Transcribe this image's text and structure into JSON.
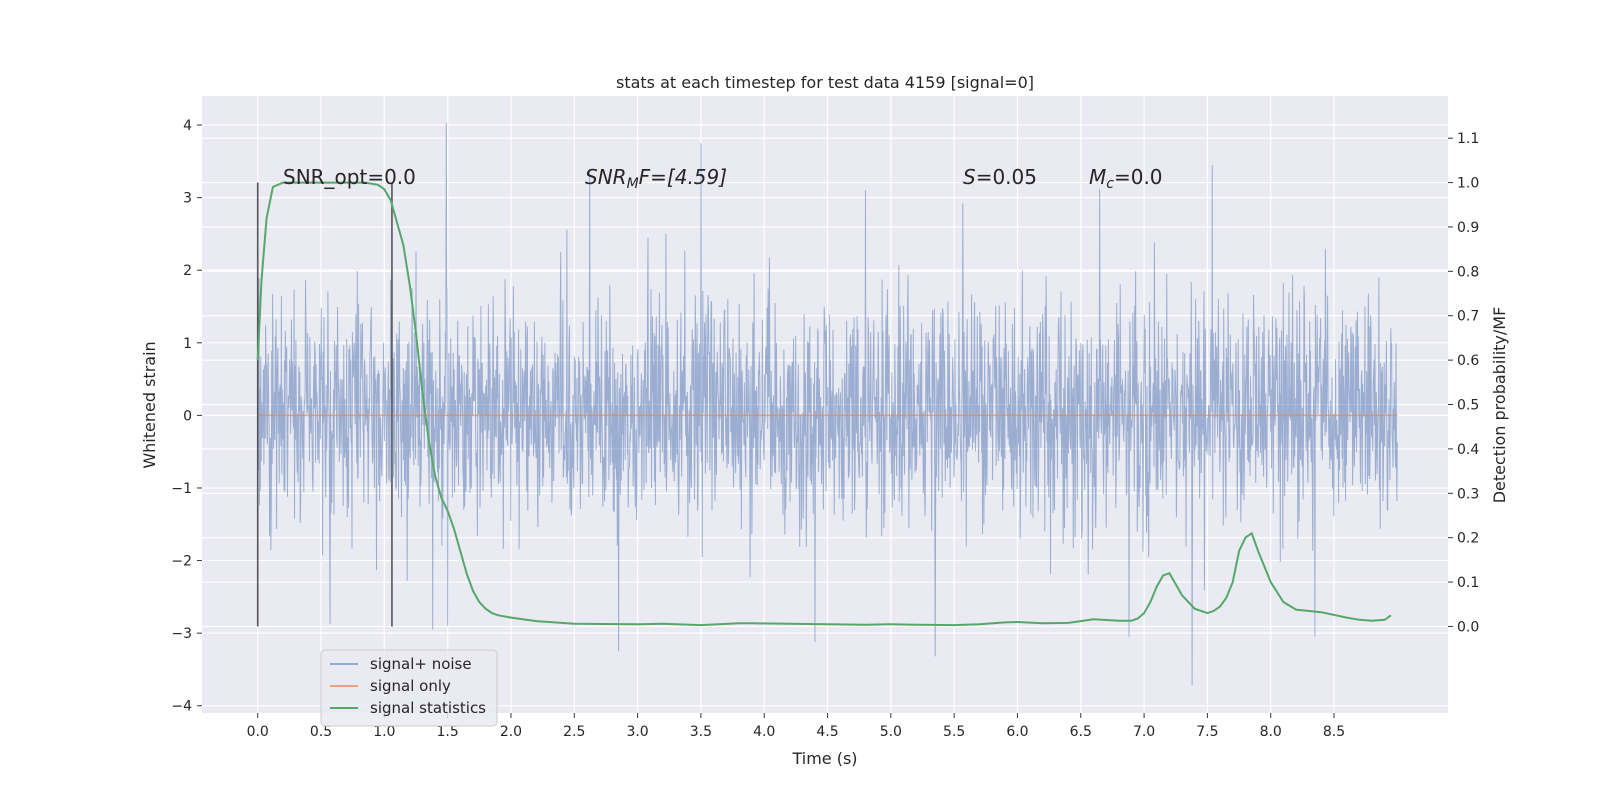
{
  "chart_data": {
    "type": "line",
    "title": "stats at each timestep for test data 4159 [signal=0]",
    "xlabel": "Time (s)",
    "ylabel": "Whitened strain",
    "y2label": "Detection probability/MF",
    "xlim": [
      -0.44,
      9.4
    ],
    "ylim": [
      -4.1,
      4.4
    ],
    "y2lim": [
      -0.195,
      1.195
    ],
    "x_ticks": [
      "0.0",
      "0.5",
      "1.0",
      "1.5",
      "2.0",
      "2.5",
      "3.0",
      "3.5",
      "4.0",
      "4.5",
      "5.0",
      "5.5",
      "6.0",
      "6.5",
      "7.0",
      "7.5",
      "8.0",
      "8.5"
    ],
    "y_ticks": [
      "4",
      "3",
      "2",
      "1",
      "0",
      "−1",
      "−2",
      "−3",
      "−4"
    ],
    "y2_ticks": [
      "1.1",
      "1.0",
      "0.9",
      "0.8",
      "0.7",
      "0.6",
      "0.5",
      "0.4",
      "0.3",
      "0.2",
      "0.1",
      "0.0"
    ],
    "grid": true,
    "legend_position": "lower-left",
    "annotations": {
      "snr_opt": "SNR_opt=0.0",
      "snr_mf_base": "SNR",
      "snr_mf_sub": "M",
      "snr_mf_rest": "F=[4.59]",
      "s_sym": "S",
      "s_val": "=0.05",
      "mc_sym": "M",
      "mc_sub": "c",
      "mc_val": "=0.0"
    },
    "vlines": [
      0.0,
      1.06
    ],
    "series": [
      {
        "name": "signal+ noise",
        "color": "#4c72b0",
        "axis": "left",
        "x_range": [
          0.0,
          9.0
        ],
        "y_range": [
          -3.72,
          4.03
        ],
        "typical_band": [
          -1.2,
          1.4
        ],
        "peaks": [
          [
            1.49,
            4.03
          ],
          [
            3.5,
            3.75
          ],
          [
            7.54,
            3.45
          ],
          [
            2.62,
            3.4
          ],
          [
            5.57,
            2.92
          ],
          [
            6.65,
            3.12
          ],
          [
            4.8,
            3.1
          ],
          [
            7.38,
            -3.72
          ],
          [
            2.85,
            -3.25
          ],
          [
            4.4,
            -3.12
          ],
          [
            5.35,
            -3.32
          ],
          [
            8.35,
            -3.05
          ],
          [
            1.38,
            -2.95
          ],
          [
            0.57,
            -2.87
          ],
          [
            1.5,
            -2.9
          ],
          [
            6.88,
            -3.05
          ]
        ]
      },
      {
        "name": "signal only",
        "color": "#dd8452",
        "axis": "left",
        "x": [
          0.0,
          9.0
        ],
        "y": [
          0.0,
          0.0
        ]
      },
      {
        "name": "signal statistics",
        "color": "#55a868",
        "axis": "right",
        "x": [
          0.0,
          0.03,
          0.07,
          0.12,
          0.2,
          0.3,
          0.5,
          0.7,
          0.85,
          0.95,
          1.0,
          1.05,
          1.1,
          1.15,
          1.2,
          1.25,
          1.3,
          1.35,
          1.4,
          1.45,
          1.5,
          1.55,
          1.6,
          1.65,
          1.7,
          1.75,
          1.8,
          1.85,
          1.9,
          2.0,
          2.2,
          2.5,
          3.0,
          3.2,
          3.5,
          3.8,
          3.9,
          4.2,
          4.5,
          4.8,
          5.0,
          5.2,
          5.5,
          5.7,
          5.9,
          6.0,
          6.2,
          6.4,
          6.5,
          6.6,
          6.8,
          6.9,
          6.95,
          7.0,
          7.05,
          7.1,
          7.15,
          7.2,
          7.3,
          7.4,
          7.5,
          7.55,
          7.6,
          7.65,
          7.7,
          7.75,
          7.8,
          7.85,
          7.9,
          8.0,
          8.1,
          8.2,
          8.4,
          8.6,
          8.7,
          8.8,
          8.9,
          8.95
        ],
        "y": [
          0.6,
          0.78,
          0.92,
          0.99,
          1.0,
          1.0,
          1.0,
          1.0,
          1.0,
          0.995,
          0.985,
          0.96,
          0.91,
          0.86,
          0.77,
          0.66,
          0.53,
          0.42,
          0.34,
          0.29,
          0.26,
          0.22,
          0.17,
          0.12,
          0.08,
          0.055,
          0.04,
          0.03,
          0.025,
          0.02,
          0.012,
          0.006,
          0.005,
          0.006,
          0.003,
          0.007,
          0.007,
          0.006,
          0.005,
          0.004,
          0.005,
          0.004,
          0.003,
          0.005,
          0.009,
          0.01,
          0.007,
          0.008,
          0.012,
          0.016,
          0.013,
          0.013,
          0.018,
          0.03,
          0.055,
          0.09,
          0.115,
          0.12,
          0.07,
          0.04,
          0.03,
          0.035,
          0.045,
          0.065,
          0.1,
          0.17,
          0.2,
          0.21,
          0.17,
          0.1,
          0.055,
          0.038,
          0.032,
          0.02,
          0.015,
          0.013,
          0.015,
          0.025
        ]
      }
    ]
  }
}
